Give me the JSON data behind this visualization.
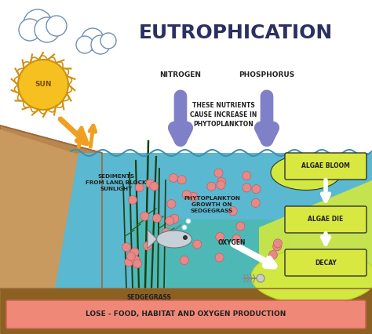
{
  "title": "EUTROPHICATION",
  "title_fontsize": 18,
  "title_color": "#2c3060",
  "bg_color": "#ffffff",
  "bottom_banner_text": "LOSE - FOOD, HABITAT AND OXYGEN PRODUCTION",
  "bottom_banner_color": "#f08878",
  "bottom_banner_border": "#cc6655",
  "land_brown": "#b8864e",
  "land_dark": "#9a6a38",
  "land_slope": "#c89a60",
  "ground_brown": "#8B6020",
  "water_blue": "#5ab8d0",
  "water_light": "#7ad0e0",
  "water_top": "#88d8e8",
  "teal_zone": "#48b8a8",
  "yellow_green": "#d0e840",
  "yellow_green2": "#b8d820",
  "orange_arrow": "#f0a020",
  "purple_arrow": "#8080c8",
  "grass_dark": "#1a4010",
  "grass_mid": "#2a6020",
  "plankton_pink": "#e88888",
  "plankton_border": "#c06060",
  "sun_yellow": "#f5c020",
  "sun_border": "#d09010",
  "algae_yellow": "#d8e840",
  "algae_border": "#333333",
  "fish_gray": "#c8d0d8",
  "fish_border": "#707880",
  "water_line_color": "#4090b0",
  "nitrogen_label": "NITROGEN",
  "phosphorus_label": "PHOSPHORUS",
  "nutrients_label": "THESE NUTRIENTS\nCAUSE INCREASE IN\nPHYTOPLANKTON",
  "sediments_label": "SEDIMENTS\nFROM LAND BLOCK\nSUNLIGHT",
  "phyto_label": "PHYTOPLANKTON\nGROWTH ON\nSEDGEGRASS",
  "oxygen_label": "OXYGEN",
  "sedgegrass_label": "SEDGEGRASS",
  "algae_bloom_label": "ALGAE BLOOM",
  "algae_die_label": "ALGAE DIE",
  "decay_label": "DECAY",
  "sun_label": "SUN"
}
